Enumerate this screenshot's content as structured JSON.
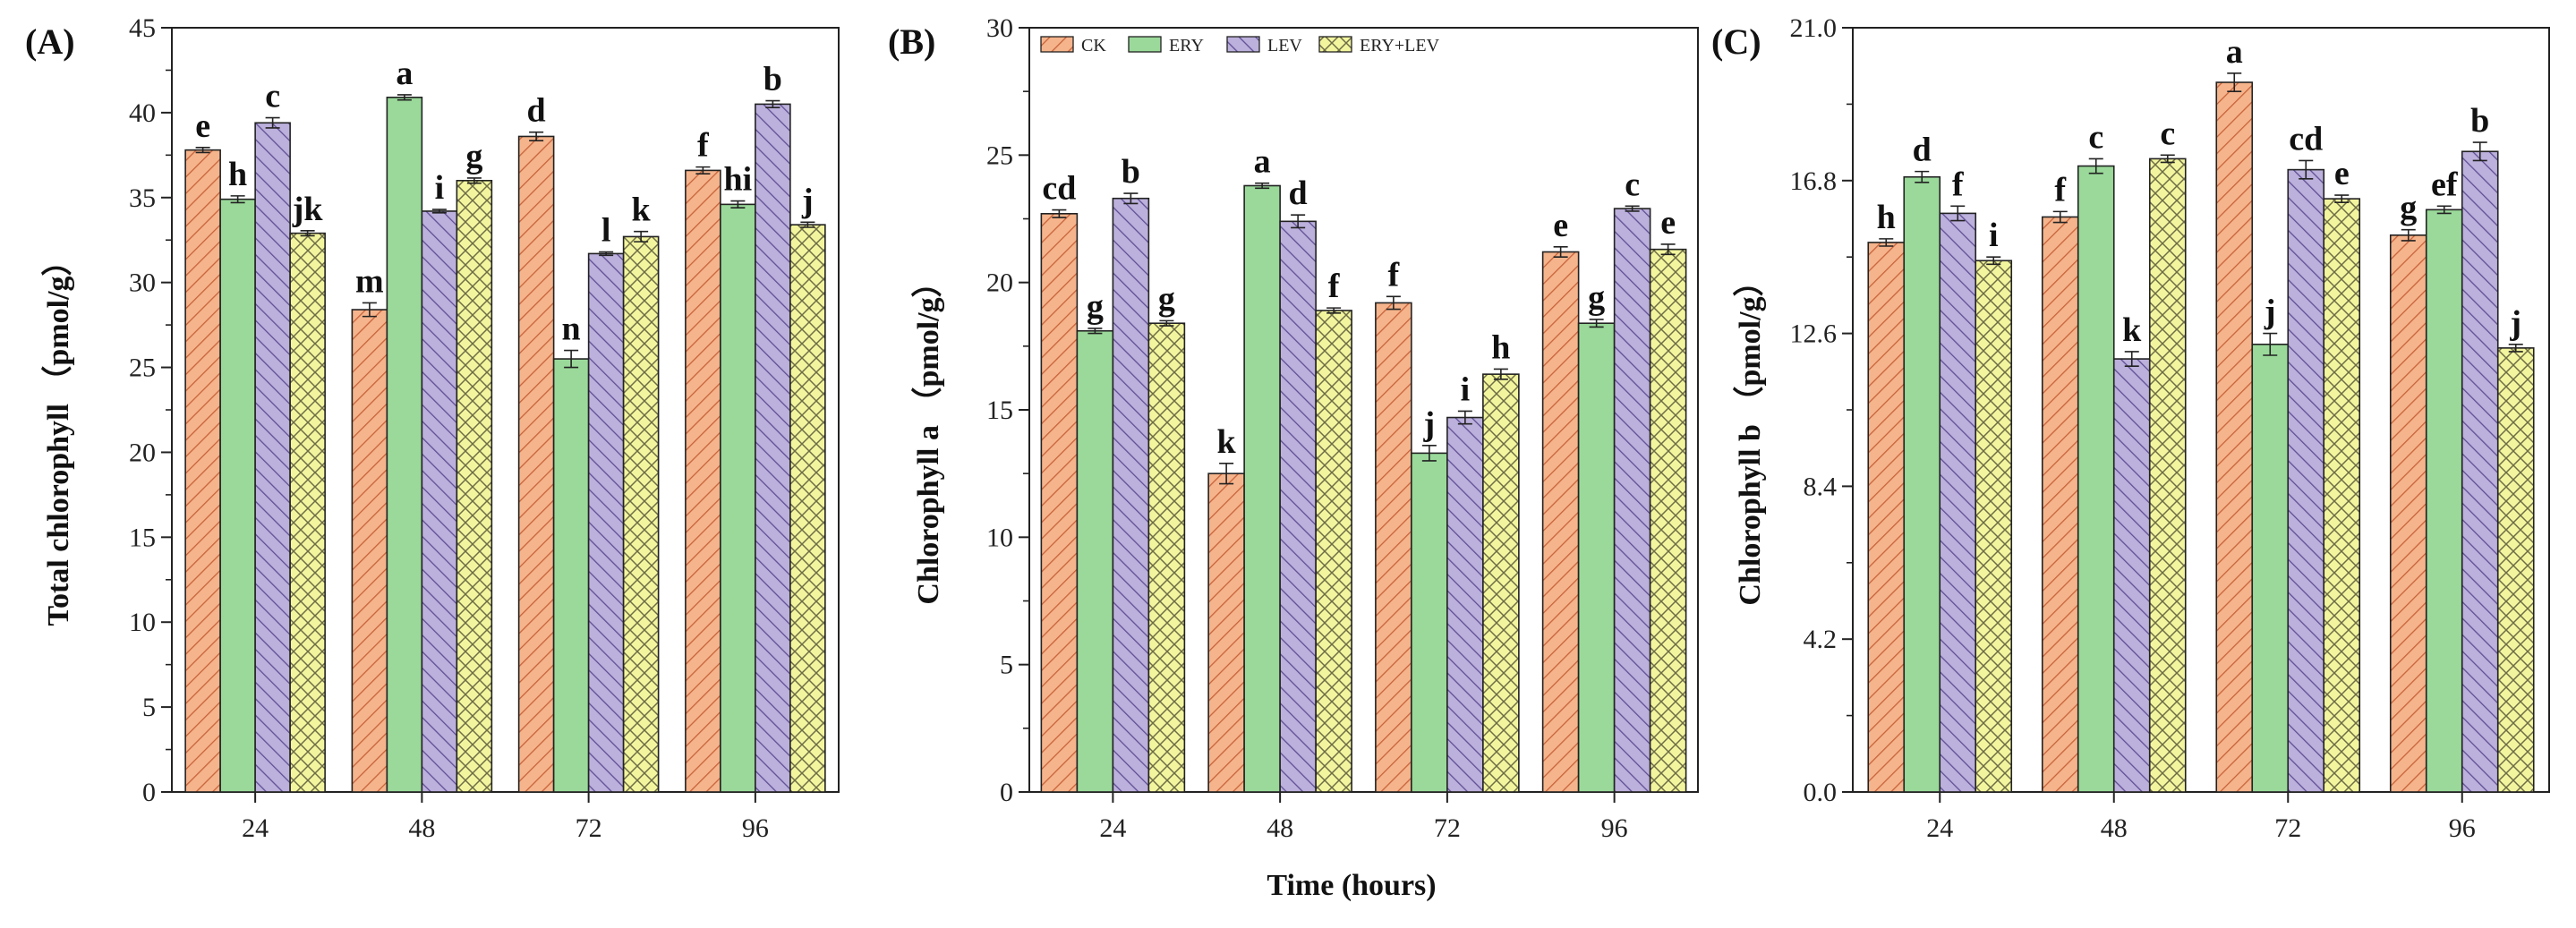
{
  "figure": {
    "xlabel": "Time (hours)"
  },
  "legend": {
    "entries": [
      "CK",
      "ERY",
      "LEV",
      "ERY+LEV"
    ]
  },
  "colors": {
    "CK": "#f5b48c",
    "ERY": "#9ad99a",
    "LEV": "#bcb0dc",
    "ERY+LEV": "#f3f59e",
    "stroke": "#222222"
  },
  "chart_data": [
    {
      "type": "bar",
      "panel_label": "(A)",
      "title": "",
      "xlabel": "",
      "ylabel": "Total chlorophyll （pmol/g）",
      "categories": [
        "24",
        "48",
        "72",
        "96"
      ],
      "ylim": [
        0,
        45
      ],
      "yticks": [
        "0",
        "5",
        "10",
        "15",
        "20",
        "25",
        "30",
        "35",
        "40",
        "45"
      ],
      "series": [
        {
          "name": "CK",
          "values": [
            37.8,
            28.4,
            38.6,
            36.6
          ],
          "errors": [
            0.15,
            0.4,
            0.25,
            0.2
          ],
          "letters": [
            "e",
            "m",
            "d",
            "f"
          ]
        },
        {
          "name": "ERY",
          "values": [
            34.9,
            40.9,
            25.5,
            34.6
          ],
          "errors": [
            0.2,
            0.15,
            0.5,
            0.2
          ],
          "letters": [
            "h",
            "a",
            "n",
            "hi"
          ]
        },
        {
          "name": "LEV",
          "values": [
            39.4,
            34.2,
            31.7,
            40.5
          ],
          "errors": [
            0.3,
            0.1,
            0.1,
            0.2
          ],
          "letters": [
            "c",
            "i",
            "l",
            "b"
          ]
        },
        {
          "name": "ERY+LEV",
          "values": [
            32.9,
            36.0,
            32.7,
            33.4
          ],
          "errors": [
            0.15,
            0.15,
            0.3,
            0.15
          ],
          "letters": [
            "jk",
            "g",
            "k",
            "j"
          ]
        }
      ]
    },
    {
      "type": "bar",
      "panel_label": "(B)",
      "title": "",
      "xlabel": "Time (hours)",
      "ylabel": "Chlorophyll a （pmol/g）",
      "categories": [
        "24",
        "48",
        "72",
        "96"
      ],
      "ylim": [
        0,
        30
      ],
      "yticks": [
        "0",
        "5",
        "10",
        "15",
        "20",
        "25",
        "30"
      ],
      "legend_position": "top-left",
      "series": [
        {
          "name": "CK",
          "values": [
            22.7,
            12.5,
            19.2,
            21.2
          ],
          "errors": [
            0.15,
            0.4,
            0.25,
            0.2
          ],
          "letters": [
            "cd",
            "k",
            "f",
            "e"
          ]
        },
        {
          "name": "ERY",
          "values": [
            18.1,
            23.8,
            13.3,
            18.4
          ],
          "errors": [
            0.1,
            0.1,
            0.3,
            0.15
          ],
          "letters": [
            "g",
            "a",
            "j",
            "g"
          ]
        },
        {
          "name": "LEV",
          "values": [
            23.3,
            22.4,
            14.7,
            22.9
          ],
          "errors": [
            0.2,
            0.25,
            0.25,
            0.1
          ],
          "letters": [
            "b",
            "d",
            "i",
            "c"
          ]
        },
        {
          "name": "ERY+LEV",
          "values": [
            18.4,
            18.9,
            16.4,
            21.3
          ],
          "errors": [
            0.1,
            0.1,
            0.2,
            0.2
          ],
          "letters": [
            "g",
            "f",
            "h",
            "e"
          ]
        }
      ]
    },
    {
      "type": "bar",
      "panel_label": "(C)",
      "title": "",
      "xlabel": "",
      "ylabel": "Chlorophyll b （pmol/g）",
      "categories": [
        "24",
        "48",
        "72",
        "96"
      ],
      "ylim": [
        0,
        21
      ],
      "yticks": [
        "0.0",
        "4.2",
        "8.4",
        "12.6",
        "16.8",
        "21.0"
      ],
      "series": [
        {
          "name": "CK",
          "values": [
            15.1,
            15.8,
            19.5,
            15.3
          ],
          "errors": [
            0.1,
            0.15,
            0.25,
            0.15
          ],
          "letters": [
            "h",
            "f",
            "a",
            "g"
          ]
        },
        {
          "name": "ERY",
          "values": [
            16.9,
            17.2,
            12.3,
            16.0
          ],
          "errors": [
            0.15,
            0.2,
            0.3,
            0.1
          ],
          "letters": [
            "d",
            "c",
            "j",
            "ef"
          ]
        },
        {
          "name": "LEV",
          "values": [
            15.9,
            11.9,
            17.1,
            17.6
          ],
          "errors": [
            0.2,
            0.2,
            0.25,
            0.25
          ],
          "letters": [
            "f",
            "k",
            "cd",
            "b"
          ]
        },
        {
          "name": "ERY+LEV",
          "values": [
            14.6,
            17.4,
            16.3,
            12.2
          ],
          "errors": [
            0.1,
            0.1,
            0.1,
            0.1
          ],
          "letters": [
            "i",
            "c",
            "e",
            "j"
          ]
        }
      ]
    }
  ]
}
